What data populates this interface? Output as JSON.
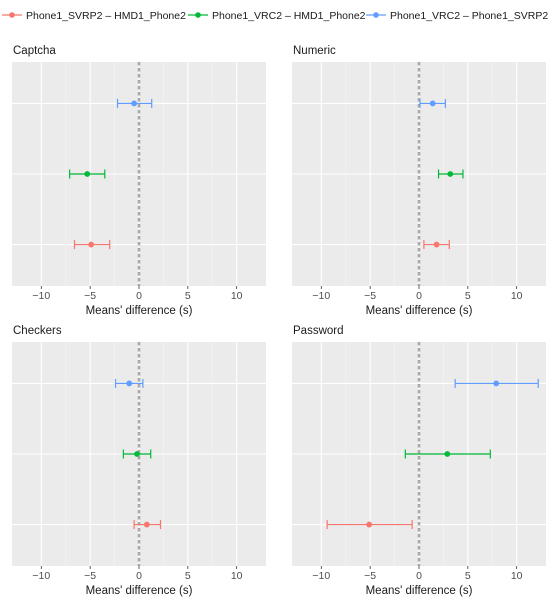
{
  "legend": {
    "items": [
      {
        "label": "Phone1_SVRP2 – HMD1_Phone2",
        "color": "#F8766D"
      },
      {
        "label": "Phone1_VRC2 – HMD1_Phone2",
        "color": "#00BA38"
      },
      {
        "label": "Phone1_VRC2 – Phone1_SVRP2",
        "color": "#619CFF"
      }
    ]
  },
  "chart_data": [
    {
      "type": "scatter",
      "title": "Captcha",
      "xlabel": "Means' difference (s)",
      "xlim": [
        -13,
        13
      ],
      "xticks": [
        -10,
        -5,
        0,
        5,
        10
      ],
      "zero_line": true,
      "grid": true,
      "series": [
        {
          "name": "Phone1_VRC2 – Phone1_SVRP2",
          "color": "#619CFF",
          "mean": -0.5,
          "lower": -2.2,
          "upper": 1.3
        },
        {
          "name": "Phone1_VRC2 – HMD1_Phone2",
          "color": "#00BA38",
          "mean": -5.3,
          "lower": -7.1,
          "upper": -3.5
        },
        {
          "name": "Phone1_SVRP2 – HMD1_Phone2",
          "color": "#F8766D",
          "mean": -4.9,
          "lower": -6.6,
          "upper": -3.0
        }
      ]
    },
    {
      "type": "scatter",
      "title": "Numeric",
      "xlabel": "Means' difference (s)",
      "xlim": [
        -13,
        13
      ],
      "xticks": [
        -10,
        -5,
        0,
        5,
        10
      ],
      "zero_line": true,
      "grid": true,
      "series": [
        {
          "name": "Phone1_VRC2 – Phone1_SVRP2",
          "color": "#619CFF",
          "mean": 1.4,
          "lower": 0.1,
          "upper": 2.7
        },
        {
          "name": "Phone1_VRC2 – HMD1_Phone2",
          "color": "#00BA38",
          "mean": 3.2,
          "lower": 2.0,
          "upper": 4.5
        },
        {
          "name": "Phone1_SVRP2 – HMD1_Phone2",
          "color": "#F8766D",
          "mean": 1.8,
          "lower": 0.5,
          "upper": 3.1
        }
      ]
    },
    {
      "type": "scatter",
      "title": "Checkers",
      "xlabel": "Means' difference (s)",
      "xlim": [
        -13,
        13
      ],
      "xticks": [
        -10,
        -5,
        0,
        5,
        10
      ],
      "zero_line": true,
      "grid": true,
      "series": [
        {
          "name": "Phone1_VRC2 – Phone1_SVRP2",
          "color": "#619CFF",
          "mean": -1.0,
          "lower": -2.4,
          "upper": 0.4
        },
        {
          "name": "Phone1_VRC2 – HMD1_Phone2",
          "color": "#00BA38",
          "mean": -0.2,
          "lower": -1.6,
          "upper": 1.2
        },
        {
          "name": "Phone1_SVRP2 – HMD1_Phone2",
          "color": "#F8766D",
          "mean": 0.8,
          "lower": -0.5,
          "upper": 2.2
        }
      ]
    },
    {
      "type": "scatter",
      "title": "Password",
      "xlabel": "Means' difference (s)",
      "xlim": [
        -13,
        13
      ],
      "xticks": [
        -10,
        -5,
        0,
        5,
        10
      ],
      "zero_line": true,
      "grid": true,
      "series": [
        {
          "name": "Phone1_VRC2 – Phone1_SVRP2",
          "color": "#619CFF",
          "mean": 7.9,
          "lower": 3.7,
          "upper": 12.2
        },
        {
          "name": "Phone1_VRC2 – HMD1_Phone2",
          "color": "#00BA38",
          "mean": 2.9,
          "lower": -1.4,
          "upper": 7.3
        },
        {
          "name": "Phone1_SVRP2 – HMD1_Phone2",
          "color": "#F8766D",
          "mean": -5.1,
          "lower": -9.4,
          "upper": -0.7
        }
      ]
    }
  ]
}
